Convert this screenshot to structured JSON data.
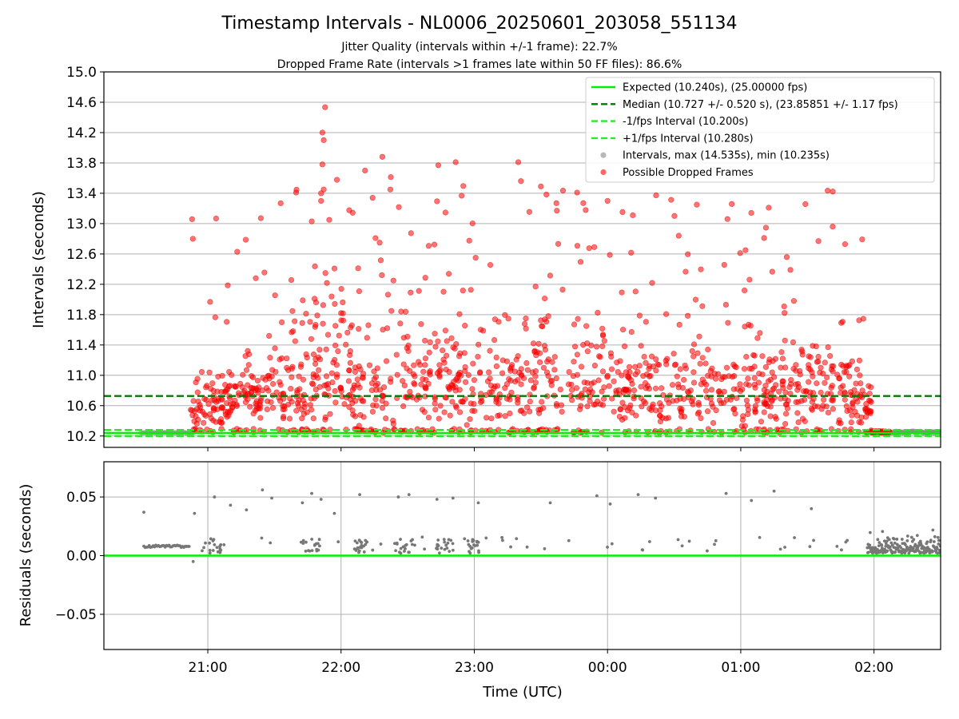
{
  "chart_data": {
    "type": "scatter",
    "title": "Timestamp Intervals - NL0006_20250601_203058_551134",
    "subtitle_lines": [
      "Jitter Quality (intervals within +/-1 frame): 22.7%",
      "Dropped Frame Rate (intervals >1 frames late within 50 FF files): 86.6%"
    ],
    "xlabel": "Time (UTC)",
    "x_ticks": [
      "21:00",
      "22:00",
      "23:00",
      "00:00",
      "01:00",
      "02:00"
    ],
    "x_tick_hours": [
      21,
      22,
      23,
      24,
      25,
      26
    ],
    "x_range_hours": [
      20.22,
      26.5
    ],
    "top_panel": {
      "ylabel": "Intervals (seconds)",
      "ylim": [
        10.05,
        15.0
      ],
      "y_ticks": [
        10.2,
        10.6,
        11.0,
        11.4,
        11.8,
        12.2,
        12.6,
        13.0,
        13.4,
        13.8,
        14.2,
        14.6,
        15.0
      ],
      "grid": "horizontal",
      "legend_position": "top-right",
      "reference_lines": [
        {
          "name": "Expected (10.240s), (25.00000 fps)",
          "y": 10.24,
          "color": "#00ee00",
          "style": "solid"
        },
        {
          "name": "Median (10.727 +/- 0.520 s), (23.85851 +/- 1.17 fps)",
          "y": 10.727,
          "color": "#007a00",
          "style": "dashed"
        },
        {
          "name": "-1/fps Interval (10.200s)",
          "y": 10.2,
          "color": "#22ee22",
          "style": "dashed"
        },
        {
          "name": "+1/fps Interval (10.280s)",
          "y": 10.28,
          "color": "#22ee22",
          "style": "dashed"
        }
      ],
      "series": [
        {
          "name": "Intervals, max (14.535s), min (10.235s)",
          "color": "#888888",
          "marker": "circle"
        },
        {
          "name": "Possible Dropped Frames",
          "color": "#ff0000",
          "marker": "circle"
        }
      ],
      "dropped_frames_sample": [
        {
          "x": 21.88,
          "y": 14.535
        },
        {
          "x": 21.86,
          "y": 14.2
        },
        {
          "x": 21.87,
          "y": 14.1
        },
        {
          "x": 21.86,
          "y": 13.78
        },
        {
          "x": 21.87,
          "y": 13.45
        },
        {
          "x": 21.85,
          "y": 13.4
        },
        {
          "x": 21.85,
          "y": 13.3
        },
        {
          "x": 21.78,
          "y": 13.03
        },
        {
          "x": 22.31,
          "y": 13.88
        },
        {
          "x": 22.18,
          "y": 13.7
        },
        {
          "x": 22.37,
          "y": 13.45
        },
        {
          "x": 22.73,
          "y": 13.77
        },
        {
          "x": 22.86,
          "y": 13.81
        },
        {
          "x": 23.33,
          "y": 13.81
        },
        {
          "x": 23.35,
          "y": 13.56
        },
        {
          "x": 23.5,
          "y": 13.49
        },
        {
          "x": 21.36,
          "y": 12.28
        },
        {
          "x": 24.0,
          "y": 13.3
        },
        {
          "x": 24.19,
          "y": 13.11
        },
        {
          "x": 24.67,
          "y": 13.25
        },
        {
          "x": 24.9,
          "y": 13.06
        },
        {
          "x": 25.21,
          "y": 13.21
        },
        {
          "x": 25.69,
          "y": 12.96
        },
        {
          "x": 23.62,
          "y": 13.17
        },
        {
          "x": 23.46,
          "y": 12.17
        },
        {
          "x": 23.01,
          "y": 12.55
        }
      ]
    },
    "bottom_panel": {
      "ylabel": "Residuals (seconds)",
      "ylim": [
        -0.08,
        0.08
      ],
      "y_ticks": [
        -0.05,
        0.0,
        0.05
      ],
      "y_tick_labels": [
        "−0.05",
        "0.00",
        "0.05"
      ],
      "grid": "both",
      "reference_line": {
        "y": 0.0,
        "color": "#00ee00"
      },
      "series": [
        {
          "name": "Residuals",
          "color": "#777777",
          "marker": "circle"
        }
      ],
      "residuals_sample": [
        {
          "x": 20.52,
          "y": 0.037
        },
        {
          "x": 20.9,
          "y": 0.036
        },
        {
          "x": 21.05,
          "y": 0.05
        },
        {
          "x": 21.17,
          "y": 0.043
        },
        {
          "x": 21.29,
          "y": 0.039
        },
        {
          "x": 21.41,
          "y": 0.056
        },
        {
          "x": 21.48,
          "y": 0.049
        },
        {
          "x": 21.71,
          "y": 0.045
        },
        {
          "x": 21.78,
          "y": 0.053
        },
        {
          "x": 21.85,
          "y": 0.048
        },
        {
          "x": 21.95,
          "y": 0.036
        },
        {
          "x": 22.14,
          "y": 0.052
        },
        {
          "x": 22.43,
          "y": 0.05
        },
        {
          "x": 22.51,
          "y": 0.052
        },
        {
          "x": 22.72,
          "y": 0.048
        },
        {
          "x": 22.84,
          "y": 0.049
        },
        {
          "x": 23.03,
          "y": 0.045
        },
        {
          "x": 23.57,
          "y": 0.045
        },
        {
          "x": 23.92,
          "y": 0.051
        },
        {
          "x": 24.02,
          "y": 0.044
        },
        {
          "x": 24.23,
          "y": 0.052
        },
        {
          "x": 24.36,
          "y": 0.049
        },
        {
          "x": 24.89,
          "y": 0.053
        },
        {
          "x": 25.08,
          "y": 0.047
        },
        {
          "x": 25.25,
          "y": 0.055
        },
        {
          "x": 25.53,
          "y": 0.04
        },
        {
          "x": 20.89,
          "y": -0.005
        }
      ]
    }
  }
}
